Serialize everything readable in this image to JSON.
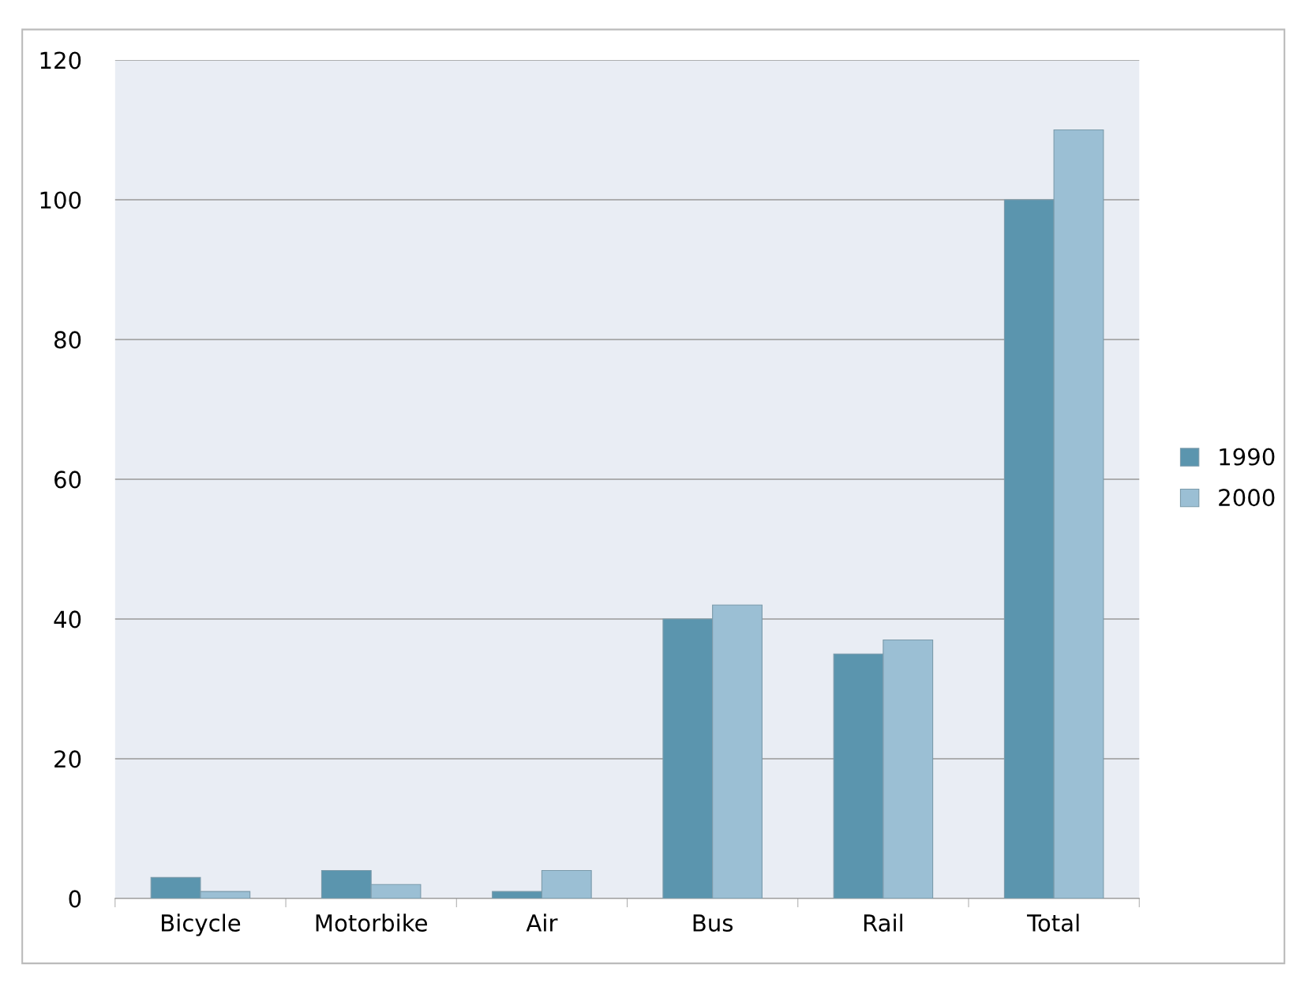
{
  "chart_data": {
    "type": "bar",
    "categories": [
      "Bicycle",
      "Motorbike",
      "Air",
      "Bus",
      "Rail",
      "Total"
    ],
    "series": [
      {
        "name": "1990",
        "color": "#5b95ae",
        "values": [
          3,
          4,
          1,
          40,
          35,
          100
        ]
      },
      {
        "name": "2000",
        "color": "#9bbfd4",
        "values": [
          1,
          2,
          4,
          42,
          37,
          110
        ]
      }
    ],
    "ylim": [
      0,
      120
    ],
    "yticks": [
      0,
      20,
      40,
      60,
      80,
      100,
      120
    ],
    "grid": "y",
    "legend": "right"
  }
}
